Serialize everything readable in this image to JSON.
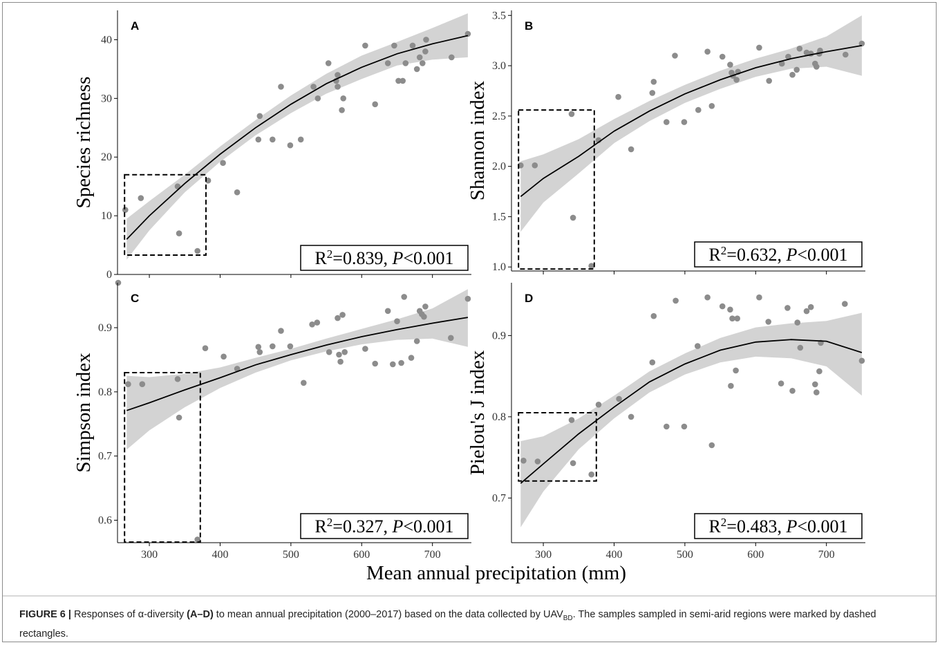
{
  "caption": {
    "figure_label": "FIGURE 6 |",
    "text_1": " Responses of α-diversity ",
    "bold_range": "(A–D)",
    "text_2": " to mean annual precipitation (2000–2017) based on the data collected by UAV",
    "subscript": "BD",
    "text_3": ". The samples sampled in semi-arid regions were marked by dashed rectangles."
  },
  "shared_xlabel": "Mean annual precipitation (mm)",
  "colors": {
    "points": "#8c8c8c",
    "band": "#d3d3d3",
    "line": "#000000",
    "rect": "#000000"
  },
  "chart_data": [
    {
      "panel": "A",
      "type": "scatter",
      "ylabel": "Species richness",
      "xlim": [
        255,
        755
      ],
      "ylim": [
        0,
        45
      ],
      "xticks": [
        300,
        400,
        500,
        600,
        700
      ],
      "yticks": [
        0,
        10,
        20,
        30,
        40
      ],
      "show_xtick_labels": false,
      "stat_r2": "0.839",
      "stat_p": "0.001",
      "semi_arid_box": {
        "x": [
          265,
          380
        ],
        "y": [
          3.3,
          17
        ]
      },
      "fit": {
        "x": [
          268,
          300,
          350,
          400,
          450,
          500,
          550,
          600,
          650,
          700,
          750
        ],
        "y": [
          6,
          10,
          15.5,
          20.5,
          25,
          29,
          32.5,
          35.3,
          37.6,
          39.3,
          40.7
        ]
      },
      "band": {
        "x": [
          268,
          300,
          350,
          400,
          450,
          500,
          550,
          600,
          650,
          700,
          750
        ],
        "upper": [
          9.5,
          12.5,
          17,
          21.8,
          26.3,
          30.5,
          34.2,
          37.3,
          39.6,
          42,
          44.5
        ],
        "lower": [
          2.5,
          7.5,
          14,
          19.2,
          23.7,
          27.5,
          30.8,
          33.3,
          35.6,
          36.6,
          37
        ]
      },
      "points": [
        [
          266,
          11
        ],
        [
          288,
          13
        ],
        [
          340,
          15
        ],
        [
          342,
          7
        ],
        [
          368,
          4
        ],
        [
          383,
          16
        ],
        [
          404,
          19
        ],
        [
          424,
          14
        ],
        [
          454,
          23
        ],
        [
          456,
          27
        ],
        [
          474,
          23
        ],
        [
          486,
          32
        ],
        [
          499,
          22
        ],
        [
          514,
          23
        ],
        [
          532,
          32
        ],
        [
          538,
          30
        ],
        [
          553,
          36
        ],
        [
          564,
          33
        ],
        [
          566,
          32
        ],
        [
          566,
          34
        ],
        [
          572,
          28
        ],
        [
          574,
          30
        ],
        [
          605,
          39
        ],
        [
          619,
          29
        ],
        [
          637,
          36
        ],
        [
          646,
          39
        ],
        [
          652,
          33
        ],
        [
          658,
          33
        ],
        [
          662,
          36
        ],
        [
          672,
          39
        ],
        [
          678,
          35
        ],
        [
          682,
          37
        ],
        [
          686,
          36
        ],
        [
          690,
          38
        ],
        [
          691,
          40
        ],
        [
          727,
          37
        ],
        [
          750,
          41
        ]
      ]
    },
    {
      "panel": "B",
      "type": "scatter",
      "ylabel": "Shannon index",
      "xlim": [
        255,
        755
      ],
      "ylim": [
        0.96,
        3.55
      ],
      "xticks": [
        300,
        400,
        500,
        600,
        700
      ],
      "yticks": [
        1.0,
        1.5,
        2.0,
        2.5,
        3.0,
        3.5
      ],
      "ytick_labels": [
        "1.0",
        "1.5",
        "2.0",
        "2.5",
        "3.0",
        "3.5"
      ],
      "show_xtick_labels": false,
      "stat_r2": "0.632",
      "stat_p": "0.001",
      "semi_arid_box": {
        "x": [
          265,
          372
        ],
        "y": [
          0.98,
          2.56
        ]
      },
      "fit": {
        "x": [
          268,
          300,
          350,
          400,
          450,
          500,
          550,
          600,
          650,
          700,
          750
        ],
        "y": [
          1.7,
          1.88,
          2.1,
          2.35,
          2.55,
          2.72,
          2.86,
          2.98,
          3.07,
          3.14,
          3.2
        ]
      },
      "band": {
        "x": [
          268,
          300,
          350,
          400,
          450,
          500,
          550,
          600,
          650,
          700,
          750
        ],
        "upper": [
          2.05,
          2.12,
          2.27,
          2.47,
          2.65,
          2.81,
          2.95,
          3.07,
          3.17,
          3.29,
          3.5
        ],
        "lower": [
          1.35,
          1.64,
          1.93,
          2.23,
          2.45,
          2.63,
          2.77,
          2.89,
          2.97,
          2.99,
          2.9
        ]
      },
      "points": [
        [
          268,
          2.01
        ],
        [
          288,
          2.01
        ],
        [
          340,
          2.52
        ],
        [
          342,
          1.49
        ],
        [
          368,
          1.01
        ],
        [
          378,
          2.26
        ],
        [
          406,
          2.69
        ],
        [
          424,
          2.17
        ],
        [
          454,
          2.73
        ],
        [
          456,
          2.84
        ],
        [
          474,
          2.44
        ],
        [
          486,
          3.1
        ],
        [
          499,
          2.44
        ],
        [
          519,
          2.56
        ],
        [
          532,
          3.14
        ],
        [
          538,
          2.6
        ],
        [
          553,
          3.09
        ],
        [
          564,
          3.01
        ],
        [
          566,
          2.93
        ],
        [
          568,
          2.9
        ],
        [
          573,
          2.86
        ],
        [
          575,
          2.94
        ],
        [
          605,
          3.18
        ],
        [
          619,
          2.85
        ],
        [
          637,
          3.02
        ],
        [
          646,
          3.09
        ],
        [
          652,
          2.91
        ],
        [
          658,
          2.96
        ],
        [
          662,
          3.17
        ],
        [
          672,
          3.13
        ],
        [
          678,
          3.12
        ],
        [
          684,
          3.02
        ],
        [
          686,
          2.99
        ],
        [
          690,
          3.12
        ],
        [
          691,
          3.15
        ],
        [
          727,
          3.11
        ],
        [
          750,
          3.22
        ]
      ]
    },
    {
      "panel": "C",
      "type": "scatter",
      "ylabel": "Simpson index",
      "xlim": [
        255,
        755
      ],
      "ylim": [
        0.565,
        0.97
      ],
      "xticks": [
        300,
        400,
        500,
        600,
        700
      ],
      "yticks": [
        0.6,
        0.7,
        0.8,
        0.9
      ],
      "ytick_labels": [
        "0.6",
        "0.7",
        "0.8",
        "0.9"
      ],
      "show_xtick_labels": true,
      "stat_r2": "0.327",
      "stat_p": "0.001",
      "semi_arid_box": {
        "x": [
          265,
          372
        ],
        "y": [
          0.566,
          0.83
        ]
      },
      "fit": {
        "x": [
          268,
          300,
          350,
          400,
          450,
          500,
          550,
          600,
          650,
          700,
          750
        ],
        "y": [
          0.771,
          0.783,
          0.803,
          0.822,
          0.842,
          0.858,
          0.873,
          0.886,
          0.897,
          0.907,
          0.916
        ]
      },
      "band": {
        "x": [
          268,
          300,
          350,
          400,
          450,
          500,
          550,
          600,
          650,
          700,
          750
        ],
        "upper": [
          0.825,
          0.823,
          0.828,
          0.838,
          0.853,
          0.867,
          0.883,
          0.898,
          0.913,
          0.93,
          0.96
        ],
        "lower": [
          0.71,
          0.74,
          0.776,
          0.806,
          0.83,
          0.849,
          0.863,
          0.874,
          0.881,
          0.883,
          0.87
        ]
      },
      "points": [
        [
          256,
          0.97
        ],
        [
          270,
          0.812
        ],
        [
          290,
          0.812
        ],
        [
          340,
          0.82
        ],
        [
          342,
          0.76
        ],
        [
          368,
          0.57
        ],
        [
          379,
          0.868
        ],
        [
          405,
          0.855
        ],
        [
          424,
          0.836
        ],
        [
          454,
          0.87
        ],
        [
          456,
          0.862
        ],
        [
          474,
          0.871
        ],
        [
          486,
          0.895
        ],
        [
          499,
          0.871
        ],
        [
          518,
          0.814
        ],
        [
          530,
          0.905
        ],
        [
          537,
          0.908
        ],
        [
          554,
          0.862
        ],
        [
          566,
          0.915
        ],
        [
          568,
          0.858
        ],
        [
          570,
          0.847
        ],
        [
          573,
          0.92
        ],
        [
          576,
          0.862
        ],
        [
          605,
          0.867
        ],
        [
          619,
          0.844
        ],
        [
          637,
          0.926
        ],
        [
          644,
          0.843
        ],
        [
          650,
          0.91
        ],
        [
          656,
          0.845
        ],
        [
          660,
          0.948
        ],
        [
          670,
          0.853
        ],
        [
          678,
          0.879
        ],
        [
          682,
          0.926
        ],
        [
          685,
          0.921
        ],
        [
          688,
          0.917
        ],
        [
          690,
          0.933
        ],
        [
          726,
          0.884
        ],
        [
          750,
          0.945
        ]
      ]
    },
    {
      "panel": "D",
      "type": "scatter",
      "ylabel": "Pielou's J index",
      "xlim": [
        255,
        755
      ],
      "ylim": [
        0.645,
        0.965
      ],
      "xticks": [
        300,
        400,
        500,
        600,
        700
      ],
      "yticks": [
        0.7,
        0.8,
        0.9
      ],
      "ytick_labels": [
        "0.7",
        "0.8",
        "0.9"
      ],
      "show_xtick_labels": true,
      "stat_r2": "0.483",
      "stat_p": "0.001",
      "semi_arid_box": {
        "x": [
          265,
          375
        ],
        "y": [
          0.721,
          0.805
        ]
      },
      "fit": {
        "x": [
          268,
          300,
          350,
          400,
          450,
          500,
          550,
          600,
          650,
          700,
          750
        ],
        "y": [
          0.718,
          0.742,
          0.779,
          0.812,
          0.843,
          0.865,
          0.882,
          0.892,
          0.895,
          0.893,
          0.879
        ]
      },
      "band": {
        "x": [
          268,
          300,
          350,
          400,
          450,
          500,
          550,
          600,
          650,
          700,
          750
        ],
        "upper": [
          0.77,
          0.776,
          0.798,
          0.826,
          0.856,
          0.878,
          0.897,
          0.91,
          0.915,
          0.918,
          0.928
        ],
        "lower": [
          0.664,
          0.708,
          0.76,
          0.798,
          0.83,
          0.852,
          0.867,
          0.874,
          0.872,
          0.862,
          0.826
        ]
      },
      "points": [
        [
          272,
          0.746
        ],
        [
          292,
          0.745
        ],
        [
          340,
          0.796
        ],
        [
          342,
          0.743
        ],
        [
          368,
          0.729
        ],
        [
          378,
          0.815
        ],
        [
          407,
          0.822
        ],
        [
          424,
          0.8
        ],
        [
          454,
          0.867
        ],
        [
          456,
          0.924
        ],
        [
          474,
          0.788
        ],
        [
          487,
          0.943
        ],
        [
          499,
          0.788
        ],
        [
          518,
          0.887
        ],
        [
          532,
          0.947
        ],
        [
          538,
          0.765
        ],
        [
          553,
          0.936
        ],
        [
          564,
          0.932
        ],
        [
          565,
          0.838
        ],
        [
          567,
          0.921
        ],
        [
          572,
          0.857
        ],
        [
          574,
          0.921
        ],
        [
          605,
          0.947
        ],
        [
          618,
          0.917
        ],
        [
          636,
          0.841
        ],
        [
          645,
          0.934
        ],
        [
          652,
          0.832
        ],
        [
          659,
          0.916
        ],
        [
          663,
          0.885
        ],
        [
          672,
          0.93
        ],
        [
          678,
          0.935
        ],
        [
          684,
          0.84
        ],
        [
          686,
          0.83
        ],
        [
          690,
          0.856
        ],
        [
          692,
          0.891
        ],
        [
          726,
          0.939
        ],
        [
          750,
          0.869
        ]
      ]
    }
  ]
}
